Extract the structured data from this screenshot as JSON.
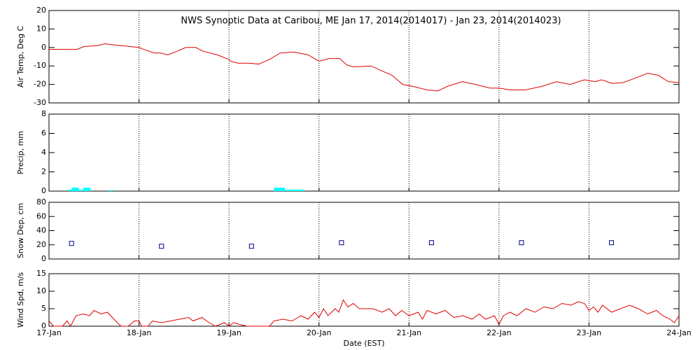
{
  "chart_data": [
    {
      "type": "line",
      "title": "NWS Synoptic Data at Caribou, ME   Jan 17, 2014(2014017) - Jan 23, 2014(2014023)",
      "ylabel": "Air Temp, Deg C",
      "color": "#e00000",
      "x": [
        0,
        0.31,
        0.39,
        0.54,
        0.62,
        0.7,
        1.0,
        1.05,
        1.17,
        1.24,
        1.32,
        1.4,
        1.52,
        1.63,
        1.71,
        1.87,
        2.0,
        2.02,
        2.1,
        2.22,
        2.33,
        2.45,
        2.57,
        2.72,
        2.88,
        3.0,
        3.11,
        3.23,
        3.31,
        3.38,
        3.58,
        3.69,
        3.81,
        3.93,
        4.04,
        4.2,
        4.32,
        4.43,
        4.59,
        4.74,
        4.9,
        5.0,
        5.13,
        5.29,
        5.48,
        5.64,
        5.79,
        5.95,
        6.07,
        6.14,
        6.26,
        6.38,
        6.49,
        6.65,
        6.77,
        6.88,
        7.0
      ],
      "values": [
        -1,
        -1,
        0.5,
        1,
        2,
        1.5,
        0,
        -1,
        -3,
        -3,
        -4,
        -2.5,
        0,
        0,
        -2,
        -4,
        -6.5,
        -7.5,
        -8.5,
        -8.5,
        -9,
        -6.5,
        -3,
        -2.5,
        -4,
        -7.5,
        -6,
        -6,
        -9.5,
        -10.5,
        -10,
        -12.5,
        -15,
        -20,
        -21,
        -23,
        -23.5,
        -21,
        -18.5,
        -20,
        -22,
        -22,
        -23,
        -23,
        -21,
        -18.5,
        -20,
        -17.5,
        -18.5,
        -17.5,
        -19.5,
        -19,
        -17,
        -14,
        -15,
        -18.5,
        -19
      ],
      "xlim": [
        0,
        7
      ],
      "xticks": [
        1,
        2,
        3,
        4,
        5,
        6
      ],
      "ylim": [
        -30,
        20
      ],
      "yticks": [
        -30,
        -20,
        -10,
        0,
        10,
        20
      ]
    },
    {
      "type": "bar",
      "ylabel": "Precip, mm",
      "color": "#00ffff",
      "x": [
        0.21,
        0.25,
        0.29,
        0.33,
        0.38,
        0.42,
        0.67,
        2.5,
        2.54,
        2.58,
        2.63,
        2.67,
        2.71,
        2.75,
        2.79
      ],
      "values": [
        0.15,
        0.35,
        0.35,
        0.15,
        0.35,
        0.35,
        0.1,
        0.35,
        0.35,
        0.35,
        0.15,
        0.15,
        0.15,
        0.15,
        0.15
      ],
      "xlim": [
        0,
        7
      ],
      "xticks": [
        1,
        2,
        3,
        4,
        5,
        6
      ],
      "ylim": [
        0,
        8
      ],
      "yticks": [
        0,
        2,
        4,
        6,
        8
      ]
    },
    {
      "type": "scatter",
      "ylabel": "Snow Dep, cm",
      "color": "#000080",
      "x": [
        0.25,
        1.25,
        2.25,
        3.25,
        4.25,
        5.25,
        6.25
      ],
      "values": [
        22,
        18,
        18,
        23,
        23,
        23,
        23
      ],
      "xlim": [
        0,
        7
      ],
      "xticks": [
        1,
        2,
        3,
        4,
        5,
        6
      ],
      "ylim": [
        0,
        80
      ],
      "yticks": [
        0,
        20,
        40,
        60,
        80
      ]
    },
    {
      "type": "line",
      "ylabel": "Wind Spd, m/s",
      "xlabel": "Date (EST)",
      "color": "#e00000",
      "x": [
        0,
        0.05,
        0.15,
        0.2,
        0.24,
        0.3,
        0.38,
        0.45,
        0.5,
        0.58,
        0.65,
        0.72,
        0.8,
        0.88,
        0.95,
        1.0,
        1.03,
        1.1,
        1.15,
        1.25,
        1.35,
        1.45,
        1.55,
        1.6,
        1.7,
        1.78,
        1.85,
        1.95,
        2.0,
        2.05,
        2.12,
        2.2,
        2.45,
        2.5,
        2.6,
        2.7,
        2.8,
        2.88,
        2.95,
        3.0,
        3.05,
        3.1,
        3.18,
        3.22,
        3.27,
        3.32,
        3.38,
        3.45,
        3.6,
        3.7,
        3.78,
        3.85,
        3.92,
        4.0,
        4.1,
        4.15,
        4.2,
        4.3,
        4.4,
        4.5,
        4.6,
        4.7,
        4.78,
        4.85,
        4.95,
        5.0,
        5.05,
        5.12,
        5.2,
        5.3,
        5.4,
        5.5,
        5.6,
        5.7,
        5.8,
        5.88,
        5.95,
        6.0,
        6.05,
        6.1,
        6.15,
        6.25,
        6.35,
        6.45,
        6.55,
        6.65,
        6.75,
        6.82,
        6.9,
        6.95,
        7.0
      ],
      "values": [
        1.5,
        0,
        0,
        1.5,
        0,
        3,
        3.5,
        3,
        4.5,
        3.5,
        4,
        2,
        0,
        0,
        1.5,
        1.5,
        0,
        0,
        1.5,
        1,
        1.5,
        2,
        2.5,
        1.5,
        2.5,
        1,
        0,
        1,
        0,
        1,
        0.5,
        0,
        0,
        1.5,
        2,
        1.5,
        3,
        2,
        4,
        2.5,
        5,
        3,
        5,
        4,
        7.5,
        5.5,
        6.5,
        5,
        5,
        4,
        5,
        3,
        4.5,
        3,
        4,
        2,
        4.5,
        3.5,
        4.5,
        2.5,
        3,
        2,
        3.5,
        2,
        3,
        0.5,
        3,
        4,
        3,
        5,
        4,
        5.5,
        5,
        6.5,
        6,
        7,
        6.5,
        4.5,
        5.5,
        4,
        6,
        4,
        5,
        6,
        5,
        3.5,
        4.5,
        3,
        2,
        1,
        3
      ],
      "xlim": [
        0,
        7
      ],
      "xticks": [
        {
          "value": 0,
          "label": "17-Jan"
        },
        {
          "value": 1,
          "label": "18-Jan"
        },
        {
          "value": 2,
          "label": "19-Jan"
        },
        {
          "value": 3,
          "label": "20-Jan"
        },
        {
          "value": 4,
          "label": "21-Jan"
        },
        {
          "value": 5,
          "label": "22-Jan"
        },
        {
          "value": 6,
          "label": "23-Jan"
        },
        {
          "value": 7,
          "label": "24-Jan"
        }
      ],
      "ylim": [
        0,
        15
      ],
      "yticks": [
        0,
        5,
        10,
        15
      ]
    }
  ]
}
